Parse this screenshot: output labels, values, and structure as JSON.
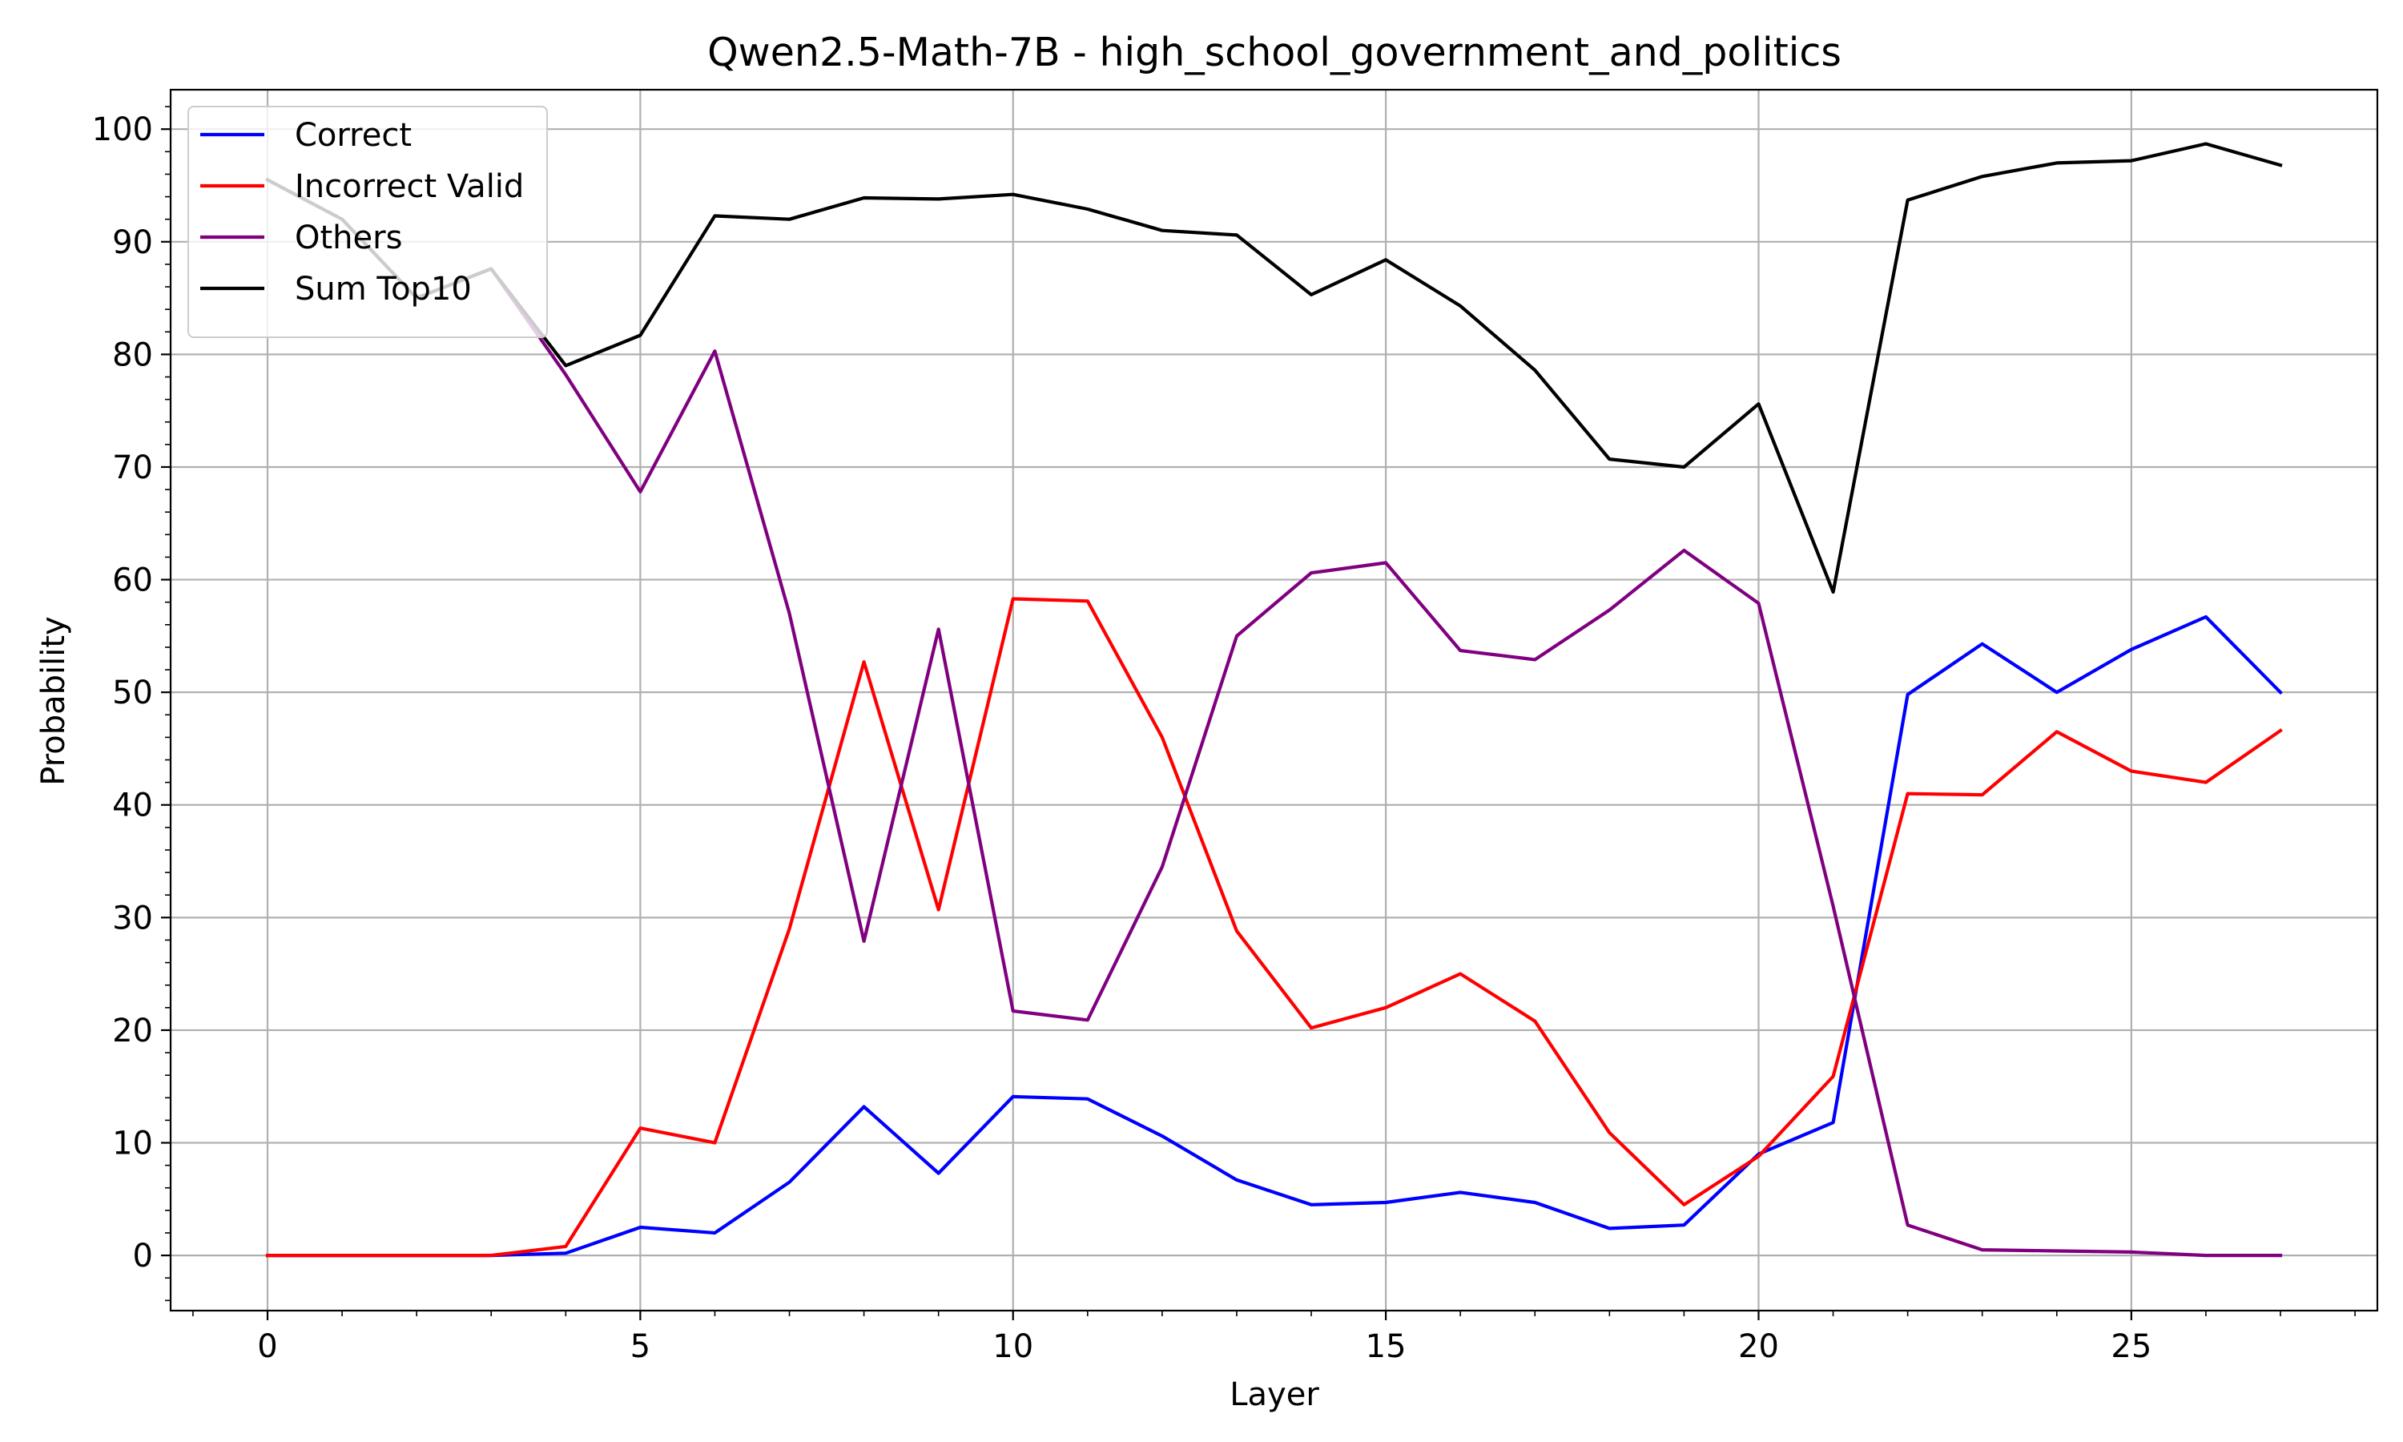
{
  "chart_data": {
    "type": "line",
    "title": "Qwen2.5-Math-7B - high_school_government_and_politics",
    "xlabel": "Layer",
    "ylabel": "Probability",
    "xlim": [
      -1.3,
      28.3
    ],
    "ylim": [
      -4.9,
      103.5
    ],
    "xticks": [
      0,
      5,
      10,
      15,
      20,
      25
    ],
    "yticks": [
      0,
      10,
      20,
      30,
      40,
      50,
      60,
      70,
      80,
      90,
      100
    ],
    "x_minor_step": 1,
    "y_minor_step": 2,
    "grid": true,
    "legend_position": "top-left",
    "x": [
      0,
      1,
      2,
      3,
      4,
      5,
      6,
      7,
      8,
      9,
      10,
      11,
      12,
      13,
      14,
      15,
      16,
      17,
      18,
      19,
      20,
      21,
      22,
      23,
      24,
      25,
      26,
      27
    ],
    "series": [
      {
        "name": "Correct",
        "color": "#0000ff",
        "values": [
          0,
          0,
          0,
          0,
          0.2,
          2.5,
          2.0,
          6.5,
          13.2,
          7.3,
          14.1,
          13.9,
          10.6,
          6.7,
          4.5,
          4.7,
          5.6,
          4.7,
          2.4,
          2.7,
          9.0,
          11.8,
          49.8,
          54.3,
          50.0,
          53.8,
          56.7,
          50.0
        ]
      },
      {
        "name": "Incorrect Valid",
        "color": "#ff0000",
        "values": [
          0,
          0,
          0,
          0,
          0.8,
          11.3,
          10.0,
          29.0,
          52.7,
          30.7,
          58.3,
          58.1,
          46.0,
          28.8,
          20.2,
          22.0,
          25.0,
          20.8,
          10.9,
          4.5,
          8.8,
          15.9,
          41.0,
          40.9,
          46.5,
          43.0,
          42.0,
          46.6
        ]
      },
      {
        "name": "Others",
        "color": "#800080",
        "values": [
          95.5,
          92.0,
          85.0,
          87.6,
          78.2,
          67.8,
          80.3,
          57.0,
          27.9,
          55.6,
          21.7,
          20.9,
          34.5,
          55.0,
          60.6,
          61.5,
          53.7,
          52.9,
          57.3,
          62.6,
          57.9,
          31.0,
          2.7,
          0.5,
          0.4,
          0.3,
          0,
          0
        ]
      },
      {
        "name": "Sum Top10",
        "color": "#000000",
        "values": [
          95.5,
          92.0,
          85.0,
          87.6,
          79.0,
          81.7,
          92.3,
          92.0,
          93.9,
          93.8,
          94.2,
          92.9,
          91.0,
          90.6,
          85.3,
          88.4,
          84.3,
          78.6,
          70.7,
          70.0,
          75.6,
          58.9,
          93.7,
          95.8,
          97.0,
          97.2,
          98.7,
          96.8
        ]
      }
    ]
  }
}
